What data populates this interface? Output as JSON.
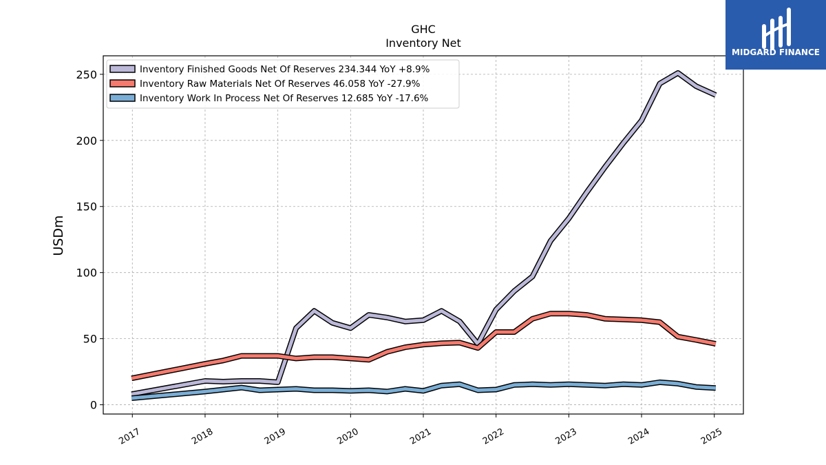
{
  "brand": {
    "name": "MIDGARD FINANCE",
    "bg_color": "#2a5cad"
  },
  "chart_data": {
    "type": "line",
    "title": "GHC",
    "subtitle": "Inventory Net",
    "ylabel": "USDm",
    "xlabel": "",
    "xlim": [
      2016.6,
      2025.4
    ],
    "ylim": [
      -7,
      264
    ],
    "yticks": [
      0,
      50,
      100,
      150,
      200,
      250
    ],
    "xticks": [
      "2017",
      "2018",
      "2019",
      "2020",
      "2021",
      "2022",
      "2023",
      "2024",
      "2025"
    ],
    "grid": true,
    "legend_position": "top-left",
    "x": [
      2016.99,
      2018.0,
      2018.25,
      2018.5,
      2018.75,
      2019.0,
      2019.25,
      2019.5,
      2019.75,
      2020.0,
      2020.25,
      2020.5,
      2020.75,
      2021.0,
      2021.25,
      2021.5,
      2021.75,
      2022.0,
      2022.25,
      2022.5,
      2022.75,
      2023.0,
      2023.25,
      2023.5,
      2023.75,
      2024.0,
      2024.25,
      2024.5,
      2024.75,
      2025.02
    ],
    "series": [
      {
        "name": "Inventory Finished Goods Net Of Reserves",
        "legend_label": "Inventory Finished Goods Net Of Reserves  234.344 YoY +8.9%",
        "color": "#bcb8d8",
        "values": [
          8,
          18,
          17.5,
          18,
          18,
          17,
          58,
          71,
          62,
          58,
          68,
          66,
          63,
          64,
          71,
          63,
          46,
          72,
          86,
          97,
          124,
          141,
          161,
          180,
          198,
          215,
          243,
          251,
          241,
          234.3
        ]
      },
      {
        "name": "Inventory Raw Materials Net Of Reserves",
        "legend_label": "Inventory Raw Materials Net Of Reserves  46.058 YoY -27.9%",
        "color": "#f57b6e",
        "values": [
          20,
          31,
          33.5,
          37,
          37,
          37,
          35,
          36,
          36,
          35,
          34,
          40,
          43.5,
          45.5,
          46.5,
          47,
          43,
          55,
          55,
          65,
          69,
          69,
          68,
          65,
          64.5,
          64,
          62.5,
          51.5,
          49,
          46.1
        ]
      },
      {
        "name": "Inventory Work In Process Net Of Reserves",
        "legend_label": "Inventory Work In Process Net Of Reserves  12.685 YoY -17.6%",
        "color": "#7aaed6",
        "values": [
          5,
          10,
          11.5,
          13,
          11,
          11.5,
          12,
          11,
          11,
          10.5,
          11,
          10,
          12,
          10.5,
          14.5,
          15.5,
          11,
          11.5,
          15,
          15.5,
          15,
          15.5,
          15,
          14.5,
          15.5,
          15,
          17,
          16,
          13.5,
          12.7
        ]
      }
    ]
  }
}
